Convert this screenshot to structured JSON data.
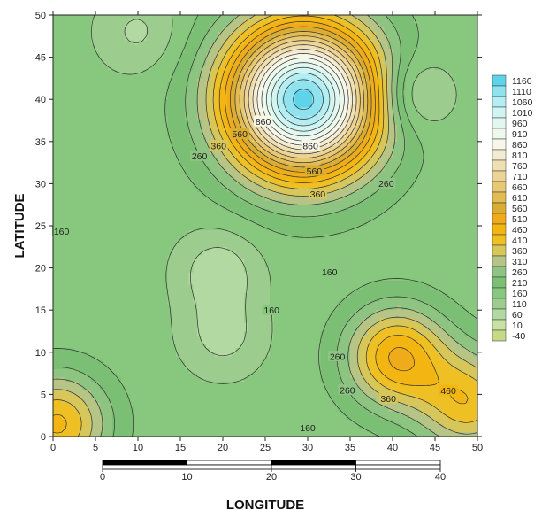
{
  "chart_data": {
    "type": "contour",
    "xlabel": "LONGITUDE",
    "ylabel": "LATITUDE",
    "xlim": [
      0,
      50
    ],
    "ylim": [
      0,
      50
    ],
    "x_ticks": [
      "0",
      "5",
      "10",
      "15",
      "20",
      "25",
      "30",
      "35",
      "40",
      "45",
      "50"
    ],
    "y_ticks": [
      "0",
      "5",
      "10",
      "15",
      "20",
      "25",
      "30",
      "35",
      "40",
      "45",
      "50"
    ],
    "levels": [
      -40,
      10,
      60,
      110,
      160,
      210,
      260,
      310,
      360,
      410,
      460,
      510,
      560,
      610,
      660,
      710,
      760,
      810,
      860,
      910,
      960,
      1010,
      1060,
      1110,
      1160
    ],
    "legend_labels": [
      "1160",
      "1110",
      "1060",
      "1010",
      "960",
      "910",
      "860",
      "810",
      "760",
      "710",
      "660",
      "610",
      "560",
      "510",
      "460",
      "410",
      "360",
      "310",
      "260",
      "210",
      "160",
      "110",
      "60",
      "10",
      "-40"
    ],
    "legend_colors": [
      "#5ed3ea",
      "#8fe3ef",
      "#b4eef2",
      "#cff4f1",
      "#e1f8f1",
      "#eef9ee",
      "#f7f7e9",
      "#f4ecd2",
      "#efdfb2",
      "#ecd495",
      "#e8c872",
      "#e2bb53",
      "#d9ad32",
      "#f0ab1a",
      "#f3b512",
      "#eec024",
      "#d7c75a",
      "#b6c485",
      "#8ec482",
      "#7bbf74",
      "#88c77e",
      "#9ccd8f",
      "#b2d9a2",
      "#c8e2a4",
      "#c6da85"
    ],
    "surface": {
      "base": 180,
      "features": [
        {
          "type": "peak",
          "lon": 29.5,
          "lat": 40,
          "value": 1180
        },
        {
          "type": "peak",
          "lon": 40.5,
          "lat": 9.5,
          "value": 510
        },
        {
          "type": "peak",
          "lon": 0.5,
          "lat": 1.5,
          "value": 470
        },
        {
          "type": "peak",
          "lon": 49,
          "lat": 4,
          "value": 440
        },
        {
          "type": "low",
          "lon": 42,
          "lat": 40.5,
          "value": 40
        },
        {
          "type": "low",
          "lon": 19.5,
          "lat": 19.5,
          "value": 70
        },
        {
          "type": "low",
          "lon": 20,
          "lat": 12,
          "value": 90
        },
        {
          "type": "low",
          "lon": 10,
          "lat": 48,
          "value": 100
        }
      ]
    },
    "contour_labels": [
      "1160",
      "860",
      "760",
      "660",
      "560",
      "460",
      "360",
      "260",
      "160",
      "60"
    ]
  },
  "scale_bar": {
    "ticks": [
      "0",
      "10",
      "20",
      "30",
      "40"
    ]
  }
}
